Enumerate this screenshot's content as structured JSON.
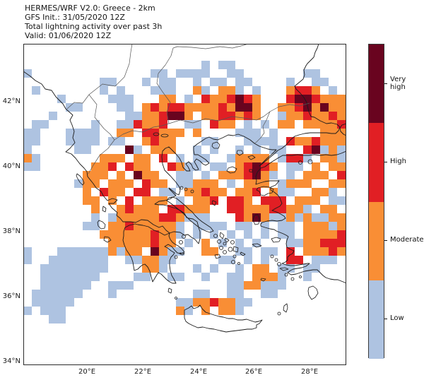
{
  "figure": {
    "title_lines": [
      "HERMES/WRF V2.0: Greece - 2km",
      "GFS Init.: 31/05/2020 12Z",
      "Total lightning activity over past 3h",
      "Valid: 01/06/2020 12Z"
    ]
  },
  "axes": {
    "x_tick_labels": [
      "20°E",
      "22°E",
      "24°E",
      "26°E",
      "28°E"
    ],
    "y_tick_labels": [
      "42°N",
      "40°N",
      "38°N",
      "36°N",
      "34°N"
    ]
  },
  "colorbar": {
    "categories": [
      {
        "key": "v",
        "label": "Very high",
        "color": "#69041f"
      },
      {
        "key": "h",
        "label": "High",
        "color": "#e11f24"
      },
      {
        "key": "m",
        "label": "Moderate",
        "color": "#f98e35"
      },
      {
        "key": "l",
        "label": "Low",
        "color": "#aec3e1"
      }
    ]
  },
  "chart_data": {
    "type": "heatmap",
    "title": "Total lightning activity over past 3h",
    "x_range_deg_east": [
      17.7,
      29.3
    ],
    "y_range_deg_north": [
      33.9,
      43.8
    ],
    "categories": [
      "Low",
      "Moderate",
      "High",
      "Very high"
    ],
    "cell_legend": {
      "l": "Low",
      "m": "Moderate",
      "h": "High",
      "v": "Very high",
      ".": "none"
    },
    "grid_rows": [
      "......................................",
      "......................................",
      ".....................l.ll.............",
      "l..............ll.llll..ll.......ll...",
      ".........ll...l.ll..l.ll.ll....l..ll..",
      ".l.......l.l...lll..ml.mml.l...mhhm.l.",
      "....l.....lll...mm.l.hmmhvhm...hvvhmmm",
      ".....ll....ll.mhmhhmmmmhmvvm..mmhvmvmm",
      "...l........llmmhvvm.mmhhmhm..lmmhmmhm",
      ".ll.....l..llhmmh..ll.hmm.l.l.mm.mmmmh",
      "ll...llll..mm.hhmmm.m....lll.l.....mmm",
      "ll...llll.ll..mhmm...ll...llll.hmmhmmm",
      "l.....ll....vl.mmm..l.l..l.l.ll..hvlml",
      "ml.......mmm.mm.h.l.ll..lmmmm.lhhl.mml",
      "ll......mmh.hmm..hmll.ll.mhvhm.ll.m.mm",
      ".......mmm.m.vmm..ll.l.mmmhvml.l.mmm.h",
      "......lmm.mmm.hmm.llmmm.l.mmm.lmmm..mm",
      ".......m.hmm.hh.ll.mmhmm.mmh.mll..mml.",
      ".......mm.m.h.mmm.l.mmh.hhm.hhh.mmm.ll",
      "........m..mhmmm.hhmmm..hhmmmhhmml.mm.",
      "........l.lmmmmmhhmlll...hmvmllmlmllmm",
      ".......ll.mmhmmmmml.llll.ll.l.ll.mmmlm",
      ".........mmmmmmhmml.l.l.l.l.l.ll.mmmmh",
      "..........mmmmmhmm.l.m.l.l.l...llmmhhh",
      "l...llllllmlmm.vmll..mm..ll.ll.h.mmmhm",
      "l..lllllll..llmmll.....ll.l.l..hh.lll.",
      "..llllllll....mml...l.l..l.mm.ll.ll...",
      "..lllllll....ll..ll..l..ll.mmml..l....",
      "..llllll..lll...........llmmlll.......",
      ".llllll...l.........ll..ll..ll........",
      ".lllll............llmmhmmll...........",
      "l.lll.............ml.m.mml............",
      "...ll.................................",
      "......................................",
      "......................................",
      "......................................",
      "......................................",
      "......................................"
    ]
  }
}
